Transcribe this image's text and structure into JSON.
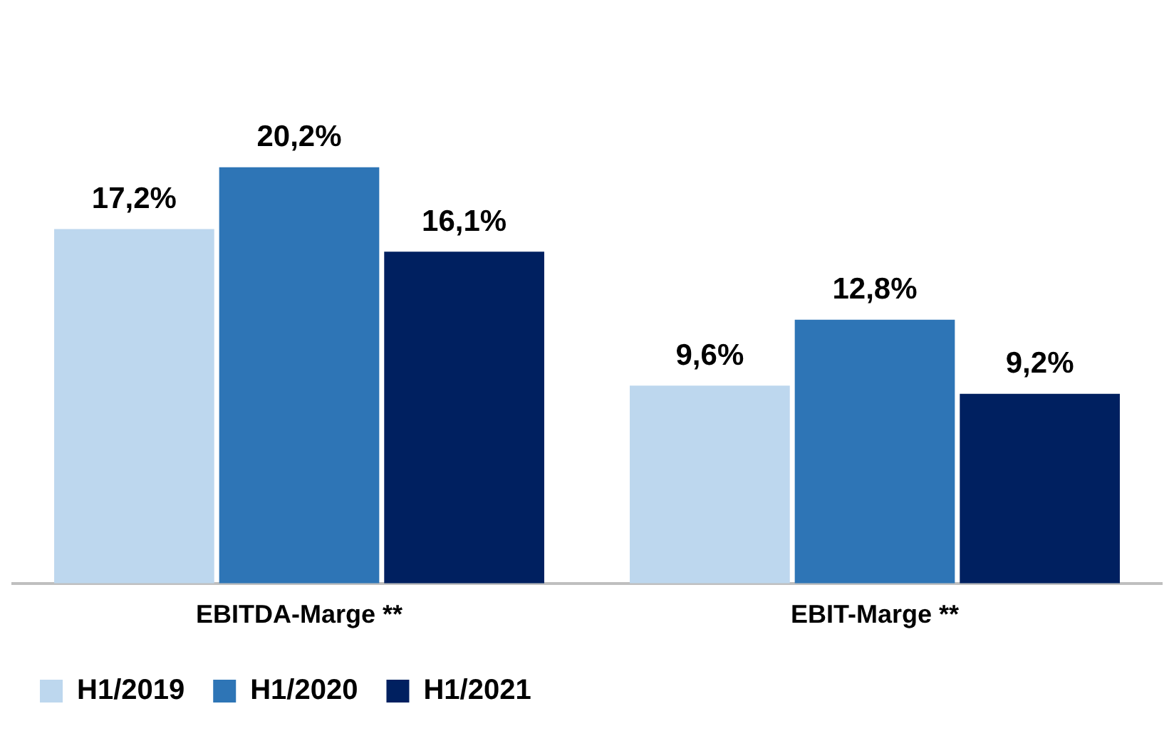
{
  "chart_data": {
    "type": "bar",
    "categories": [
      "EBITDA-Marge **",
      "EBIT-Marge **"
    ],
    "series": [
      {
        "name": "H1/2019",
        "color": "#bdd7ee",
        "values": [
          17.2,
          9.6
        ],
        "value_labels": [
          "17,2%",
          "9,6%"
        ]
      },
      {
        "name": "H1/2020",
        "color": "#2e75b6",
        "values": [
          20.2,
          12.8
        ],
        "value_labels": [
          "20,2%",
          "12,8%"
        ]
      },
      {
        "name": "H1/2021",
        "color": "#002060",
        "values": [
          16.1,
          9.2
        ],
        "value_labels": [
          "16,1%",
          "9,2%"
        ]
      }
    ],
    "legend": "bottom left",
    "grid": false
  }
}
